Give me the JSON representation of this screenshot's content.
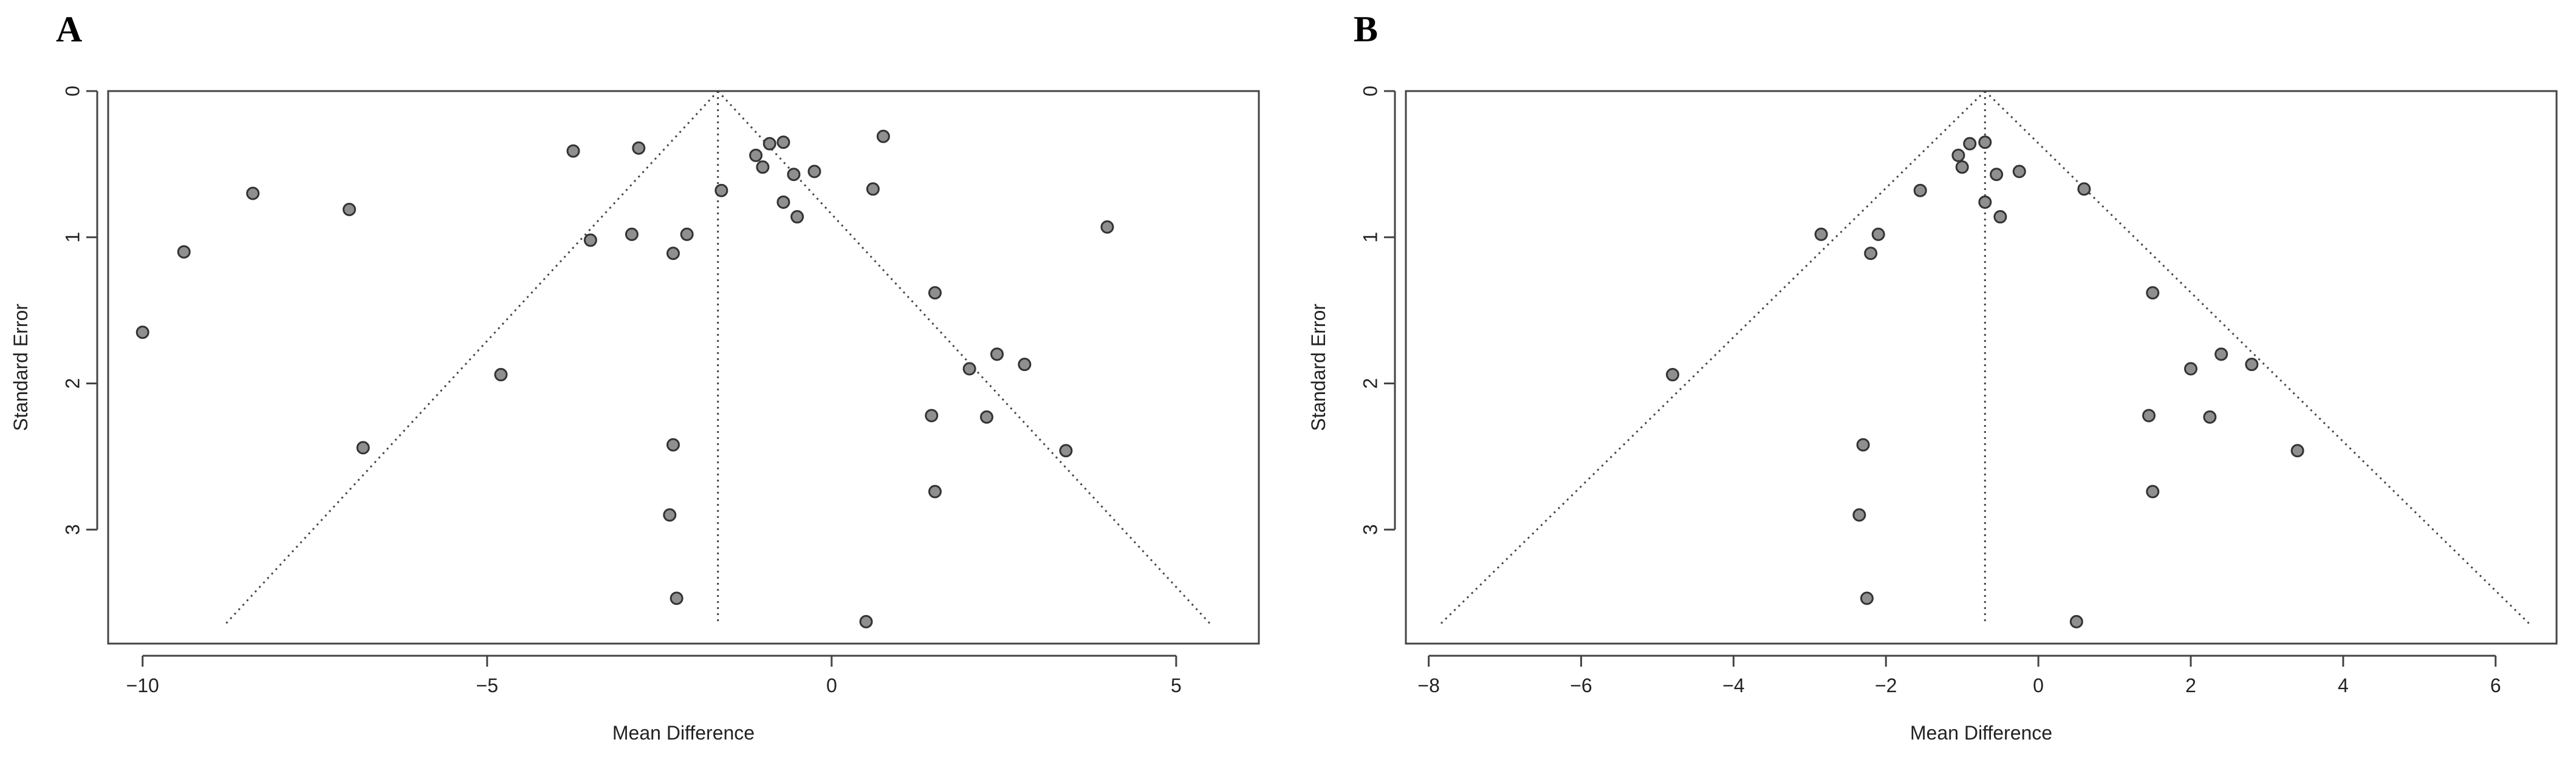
{
  "panels": [
    {
      "label": "A"
    },
    {
      "label": "B"
    }
  ],
  "chart_data": [
    {
      "type": "scatter",
      "panel": "A",
      "title": "",
      "xlabel": "Mean Difference",
      "ylabel": "Standard Error",
      "xlim": [
        -10.5,
        6.2
      ],
      "ylim": [
        3.78,
        0
      ],
      "y_reversed": true,
      "xticks": [
        -10,
        -5,
        0,
        5
      ],
      "yticks": [
        0,
        1,
        2,
        3
      ],
      "summary_estimate": -1.65,
      "funnel_se_max": 3.65,
      "points": [
        {
          "x": -10.0,
          "y": 1.65
        },
        {
          "x": -9.4,
          "y": 1.1
        },
        {
          "x": -8.4,
          "y": 0.7
        },
        {
          "x": -7.0,
          "y": 0.81
        },
        {
          "x": -6.8,
          "y": 2.44
        },
        {
          "x": -4.8,
          "y": 1.94
        },
        {
          "x": -3.75,
          "y": 0.41
        },
        {
          "x": -3.5,
          "y": 1.02
        },
        {
          "x": -2.8,
          "y": 0.39
        },
        {
          "x": -2.9,
          "y": 0.98
        },
        {
          "x": -2.3,
          "y": 1.11
        },
        {
          "x": -2.1,
          "y": 0.98
        },
        {
          "x": -2.3,
          "y": 2.42
        },
        {
          "x": -2.35,
          "y": 2.9
        },
        {
          "x": -2.25,
          "y": 3.47
        },
        {
          "x": -1.6,
          "y": 0.68
        },
        {
          "x": -1.1,
          "y": 0.44
        },
        {
          "x": -1.0,
          "y": 0.52
        },
        {
          "x": -0.9,
          "y": 0.36
        },
        {
          "x": -0.7,
          "y": 0.35
        },
        {
          "x": -0.55,
          "y": 0.57
        },
        {
          "x": -0.7,
          "y": 0.76
        },
        {
          "x": -0.5,
          "y": 0.86
        },
        {
          "x": -0.25,
          "y": 0.55
        },
        {
          "x": 0.6,
          "y": 0.67
        },
        {
          "x": 0.75,
          "y": 0.31
        },
        {
          "x": 0.5,
          "y": 3.63
        },
        {
          "x": 1.5,
          "y": 1.38
        },
        {
          "x": 1.45,
          "y": 2.22
        },
        {
          "x": 1.5,
          "y": 2.74
        },
        {
          "x": 2.0,
          "y": 1.9
        },
        {
          "x": 2.25,
          "y": 2.23
        },
        {
          "x": 2.4,
          "y": 1.8
        },
        {
          "x": 2.8,
          "y": 1.87
        },
        {
          "x": 3.4,
          "y": 2.46
        },
        {
          "x": 4.0,
          "y": 0.93
        }
      ]
    },
    {
      "type": "scatter",
      "panel": "B",
      "title": "",
      "xlabel": "Mean Difference",
      "ylabel": "Standard Error",
      "xlim": [
        -8.3,
        6.8
      ],
      "ylim": [
        3.78,
        0
      ],
      "y_reversed": true,
      "xticks": [
        -8,
        -6,
        -4,
        -2,
        0,
        2,
        4,
        6
      ],
      "yticks": [
        0,
        1,
        2,
        3
      ],
      "summary_estimate": -0.7,
      "funnel_se_max": 3.65,
      "points": [
        {
          "x": -4.8,
          "y": 1.94
        },
        {
          "x": -2.85,
          "y": 0.98
        },
        {
          "x": -2.2,
          "y": 1.11
        },
        {
          "x": -2.1,
          "y": 0.98
        },
        {
          "x": -2.3,
          "y": 2.42
        },
        {
          "x": -2.35,
          "y": 2.9
        },
        {
          "x": -2.25,
          "y": 3.47
        },
        {
          "x": -1.55,
          "y": 0.68
        },
        {
          "x": -1.05,
          "y": 0.44
        },
        {
          "x": -1.0,
          "y": 0.52
        },
        {
          "x": -0.9,
          "y": 0.36
        },
        {
          "x": -0.7,
          "y": 0.35
        },
        {
          "x": -0.55,
          "y": 0.57
        },
        {
          "x": -0.7,
          "y": 0.76
        },
        {
          "x": -0.5,
          "y": 0.86
        },
        {
          "x": -0.25,
          "y": 0.55
        },
        {
          "x": 0.6,
          "y": 0.67
        },
        {
          "x": 0.5,
          "y": 3.63
        },
        {
          "x": 1.5,
          "y": 1.38
        },
        {
          "x": 1.45,
          "y": 2.22
        },
        {
          "x": 1.5,
          "y": 2.74
        },
        {
          "x": 2.0,
          "y": 1.9
        },
        {
          "x": 2.25,
          "y": 2.23
        },
        {
          "x": 2.4,
          "y": 1.8
        },
        {
          "x": 2.8,
          "y": 1.87
        },
        {
          "x": 3.4,
          "y": 2.46
        }
      ]
    }
  ]
}
